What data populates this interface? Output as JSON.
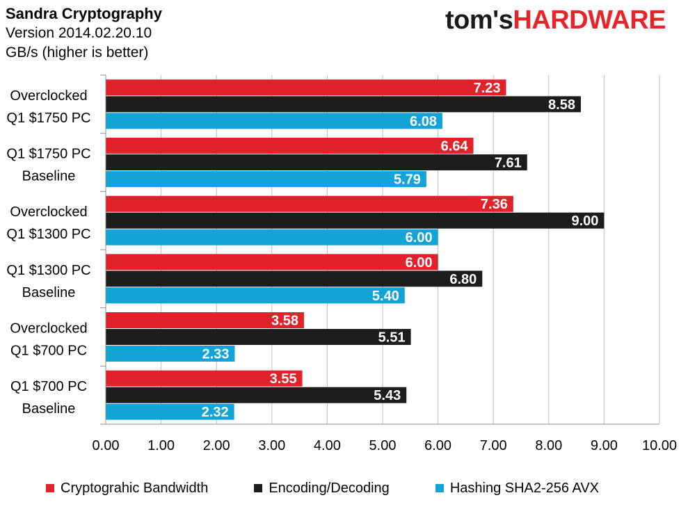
{
  "header": {
    "title": "Sandra Cryptography",
    "subtitle": "Version 2014.02.20.10",
    "units": "GB/s (higher is better)"
  },
  "logo": {
    "part1": "tom's",
    "part2": "HARDWARE",
    "color1": "#1a1a1a",
    "color2": "#e5252a"
  },
  "chart_data": {
    "type": "bar",
    "orientation": "horizontal",
    "title": "Sandra Cryptography",
    "subtitle": "Version 2014.02.20.10",
    "xlabel": "GB/s (higher is better)",
    "ylabel": "",
    "xlim": [
      0,
      10
    ],
    "x_ticks": [
      "0.00",
      "1.00",
      "2.00",
      "3.00",
      "4.00",
      "5.00",
      "6.00",
      "7.00",
      "8.00",
      "9.00",
      "10.00"
    ],
    "grid": true,
    "legend_position": "bottom",
    "categories": [
      [
        "Overclocked",
        "Q1 $1750 PC"
      ],
      [
        "Q1 $1750 PC",
        "Baseline"
      ],
      [
        "Overclocked",
        "Q1 $1300 PC"
      ],
      [
        "Q1 $1300 PC",
        "Baseline"
      ],
      [
        "Overclocked",
        "Q1 $700 PC"
      ],
      [
        "Q1 $700 PC",
        "Baseline"
      ]
    ],
    "series": [
      {
        "name": "Cryptograhic Bandwidth",
        "color": "#e0232b",
        "values": [
          7.23,
          6.64,
          7.36,
          6.0,
          3.58,
          3.55
        ],
        "labels": [
          "7.23",
          "6.64",
          "7.36",
          "6.00",
          "3.58",
          "3.55"
        ]
      },
      {
        "name": "Encoding/Decoding",
        "color": "#1d1d1d",
        "values": [
          8.58,
          7.61,
          9.0,
          6.8,
          5.51,
          5.43
        ],
        "labels": [
          "8.58",
          "7.61",
          "9.00",
          "6.80",
          "5.51",
          "5.43"
        ]
      },
      {
        "name": "Hashing SHA2-256 AVX",
        "color": "#14a3d6",
        "values": [
          6.08,
          5.79,
          6.0,
          5.4,
          2.33,
          2.32
        ],
        "labels": [
          "6.08",
          "5.79",
          "6.00",
          "5.40",
          "2.33",
          "2.32"
        ]
      }
    ]
  }
}
